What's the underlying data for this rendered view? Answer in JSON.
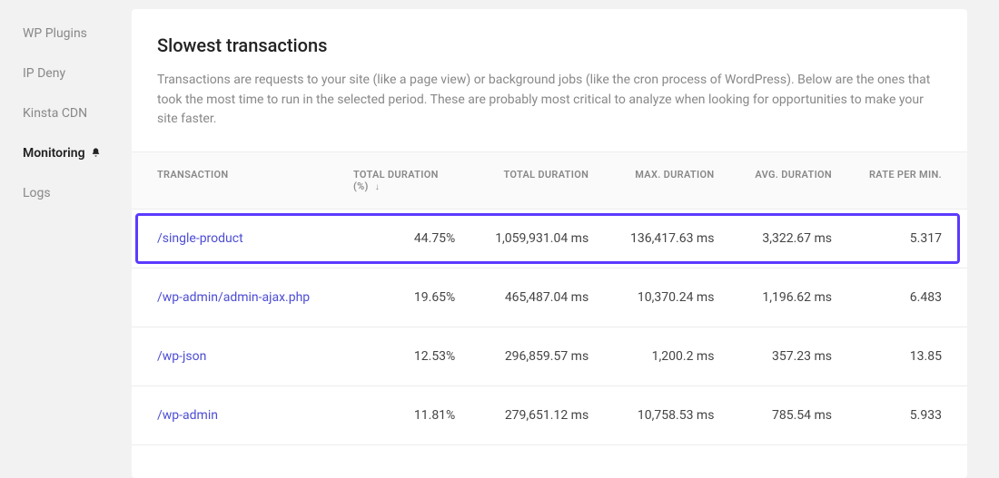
{
  "colors": {
    "page_bg": "#f2f2f3",
    "panel_bg": "#ffffff",
    "text_muted": "#888888",
    "text_body": "#444444",
    "text_title": "#222222",
    "link": "#4c4cd4",
    "border": "#ededed",
    "highlight_border": "#5c3bff"
  },
  "sidebar": {
    "items": [
      {
        "label": "WP Plugins",
        "active": false
      },
      {
        "label": "IP Deny",
        "active": false
      },
      {
        "label": "Kinsta CDN",
        "active": false
      },
      {
        "label": "Monitoring",
        "active": true,
        "icon": "bell"
      },
      {
        "label": "Logs",
        "active": false
      }
    ]
  },
  "panel": {
    "title": "Slowest transactions",
    "description": "Transactions are requests to your site (like a page view) or background jobs (like the cron process of WordPress). Below are the ones that took the most time to run in the selected period. These are probably most critical to analyze when looking for opportunities to make your site faster."
  },
  "table": {
    "columns": {
      "transaction": "TRANSACTION",
      "total_duration_pct_line1": "TOTAL DURATION",
      "total_duration_pct_line2": "(%)",
      "total_duration": "TOTAL DURATION",
      "max_duration": "MAX. DURATION",
      "avg_duration": "AVG. DURATION",
      "rate": "RATE PER MIN."
    },
    "sort_indicator": "↓",
    "rows": [
      {
        "transaction": "/single-product",
        "total_duration_pct": "44.75%",
        "total_duration": "1,059,931.04 ms",
        "max_duration": "136,417.63 ms",
        "avg_duration": "3,322.67 ms",
        "rate": "5.317",
        "highlight": true
      },
      {
        "transaction": "/wp-admin/admin-ajax.php",
        "total_duration_pct": "19.65%",
        "total_duration": "465,487.04 ms",
        "max_duration": "10,370.24 ms",
        "avg_duration": "1,196.62 ms",
        "rate": "6.483",
        "highlight": false
      },
      {
        "transaction": "/wp-json",
        "total_duration_pct": "12.53%",
        "total_duration": "296,859.57 ms",
        "max_duration": "1,200.2 ms",
        "avg_duration": "357.23 ms",
        "rate": "13.85",
        "highlight": false
      },
      {
        "transaction": "/wp-admin",
        "total_duration_pct": "11.81%",
        "total_duration": "279,651.12 ms",
        "max_duration": "10,758.53 ms",
        "avg_duration": "785.54 ms",
        "rate": "5.933",
        "highlight": false
      }
    ]
  }
}
